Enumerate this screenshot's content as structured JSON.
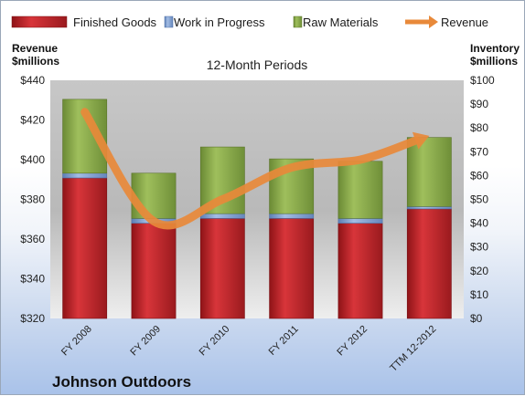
{
  "chart_data": {
    "type": "bar",
    "subtitle": "12-Month Periods",
    "company": "Johnson Outdoors",
    "categories": [
      "FY 2008",
      "FY 2009",
      "FY 2010",
      "FY 2011",
      "FY 2012",
      "TTM 12-2012"
    ],
    "left_axis": {
      "label_line1": "Revenue",
      "label_line2": "$millions",
      "ylim": [
        320,
        440
      ],
      "ticks": [
        "$320",
        "$340",
        "$360",
        "$380",
        "$400",
        "$420",
        "$440"
      ],
      "tick_values": [
        320,
        340,
        360,
        380,
        400,
        420,
        440
      ]
    },
    "right_axis": {
      "label_line1": "Inventory",
      "label_line2": "$millions",
      "ylim": [
        0,
        100
      ],
      "ticks": [
        "$0",
        "$10",
        "$20",
        "$30",
        "$40",
        "$50",
        "$60",
        "$70",
        "$80",
        "$90",
        "$100"
      ],
      "tick_values": [
        0,
        10,
        20,
        30,
        40,
        50,
        60,
        70,
        80,
        90,
        100
      ]
    },
    "stacked_series": [
      {
        "name": "Finished Goods",
        "axis": "right",
        "color": "#c0282d",
        "values": [
          59,
          40,
          42,
          42,
          40,
          46
        ]
      },
      {
        "name": "Work in Progress",
        "axis": "right",
        "color": "#7d9fd3",
        "values": [
          2,
          2,
          2,
          2,
          2,
          1
        ]
      },
      {
        "name": "Raw Materials",
        "axis": "right",
        "color": "#8aab4c",
        "values": [
          31,
          19,
          28,
          23,
          24,
          29
        ]
      }
    ],
    "line_series": {
      "name": "Revenue",
      "axis": "left",
      "color": "#e8893a",
      "values": [
        424,
        369,
        380,
        396,
        400,
        412
      ]
    },
    "legend_position": "top",
    "grid": false
  }
}
